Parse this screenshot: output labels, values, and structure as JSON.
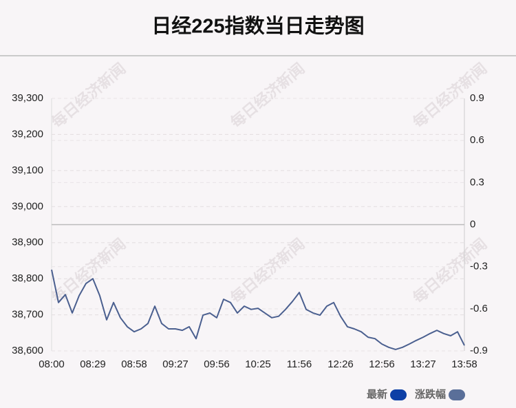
{
  "chart_data": {
    "type": "line",
    "title": "日经225指数当日走势图",
    "watermark": "每日经济新闻",
    "categories": [
      "08:00",
      null,
      null,
      null,
      null,
      null,
      "08:29",
      null,
      null,
      null,
      null,
      null,
      "08:58",
      null,
      null,
      null,
      null,
      null,
      "09:27",
      null,
      null,
      null,
      null,
      null,
      "09:56",
      null,
      null,
      null,
      null,
      null,
      "10:25",
      null,
      null,
      null,
      null,
      null,
      "11:56",
      null,
      null,
      null,
      null,
      null,
      "12:26",
      null,
      null,
      null,
      null,
      null,
      "12:56",
      null,
      null,
      null,
      null,
      null,
      "13:27",
      null,
      null,
      null,
      null,
      null,
      "13:58"
    ],
    "series": [
      {
        "name": "最新",
        "color": "#4a5f8f",
        "legend_color": "#0d3fa6",
        "values": [
          38825,
          38734,
          38756,
          38705,
          38753,
          38787,
          38800,
          38753,
          38686,
          38734,
          38692,
          38667,
          38653,
          38661,
          38676,
          38724,
          38676,
          38661,
          38661,
          38657,
          38667,
          38634,
          38699,
          38705,
          38692,
          38743,
          38734,
          38705,
          38724,
          38715,
          38718,
          38705,
          38692,
          38696,
          38715,
          38737,
          38762,
          38715,
          38705,
          38699,
          38724,
          38734,
          38696,
          38667,
          38661,
          38653,
          38638,
          38634,
          38619,
          38610,
          38604,
          38610,
          38619,
          38629,
          38638,
          38648,
          38657,
          38648,
          38642,
          38653,
          38615
        ]
      },
      {
        "name": "涨跌幅",
        "color": "#5a6f99",
        "axis": "y2"
      }
    ],
    "ylim": [
      38600,
      39300
    ],
    "yticks": [
      {
        "value": 38600,
        "label": "38,600"
      },
      {
        "value": 38700,
        "label": "38,700"
      },
      {
        "value": 38800,
        "label": "38,800"
      },
      {
        "value": 38900,
        "label": "38,900"
      },
      {
        "value": 39000,
        "label": "39,000"
      },
      {
        "value": 39100,
        "label": "39,100"
      },
      {
        "value": 39200,
        "label": "39,200"
      },
      {
        "value": 39300,
        "label": "39,300"
      }
    ],
    "y2lim": [
      -0.9,
      0.9
    ],
    "y2ticks": [
      -0.9,
      -0.6,
      -0.3,
      0,
      0.3,
      0.6,
      0.9
    ],
    "grid": true
  }
}
